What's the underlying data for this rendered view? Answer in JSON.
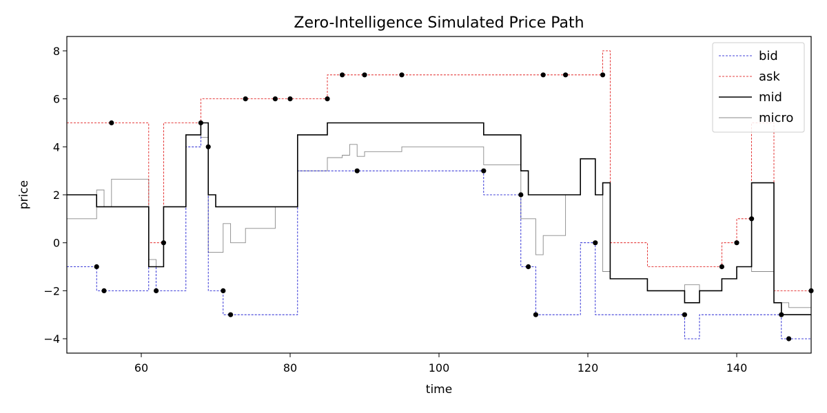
{
  "chart_data": {
    "type": "line",
    "title": "Zero-Intelligence Simulated Price Path",
    "xlabel": "time",
    "ylabel": "price",
    "xlim": [
      50,
      150
    ],
    "ylim": [
      -4.6,
      8.6
    ],
    "xticks": [
      60,
      80,
      100,
      120,
      140
    ],
    "yticks": [
      -4,
      -2,
      0,
      2,
      4,
      6,
      8
    ],
    "grid": false,
    "legend_position": "top-right",
    "step": "post",
    "series": [
      {
        "name": "bid",
        "color": "#0000cc",
        "style": "dashed",
        "x": [
          50,
          54,
          61,
          62,
          63,
          66,
          68,
          69,
          71,
          81,
          106,
          111,
          113,
          119,
          121,
          122,
          123,
          133,
          135,
          146,
          150
        ],
        "y": [
          -1,
          -2,
          -1,
          -2,
          -2,
          4,
          5,
          -2,
          -3,
          3,
          2,
          -1,
          -3,
          0,
          -3,
          -3,
          -3,
          -4,
          -3,
          -4,
          -4
        ]
      },
      {
        "name": "ask",
        "color": "#dd0000",
        "style": "dashed",
        "x": [
          50,
          61,
          63,
          64,
          68,
          72,
          85,
          122,
          123,
          128,
          138,
          140,
          142,
          145,
          150
        ],
        "y": [
          5,
          0,
          5,
          5,
          6,
          6,
          7,
          8,
          0,
          -1,
          0,
          1,
          5,
          -2,
          -2
        ]
      },
      {
        "name": "mid",
        "color": "#000000",
        "style": "solid",
        "x": [
          50,
          54,
          61,
          63,
          64,
          66,
          68,
          69,
          70,
          72,
          81,
          85,
          106,
          111,
          112,
          113,
          119,
          121,
          122,
          123,
          128,
          133,
          135,
          138,
          140,
          142,
          145,
          146,
          150
        ],
        "y": [
          2,
          1.5,
          -1,
          1.5,
          1.5,
          4.5,
          5,
          2,
          1.5,
          1.5,
          4.5,
          5,
          4.5,
          3,
          2,
          2,
          3.5,
          2,
          2.5,
          -1.5,
          -2,
          -2.5,
          -2,
          -1.5,
          -1,
          2.5,
          -2.5,
          -3,
          -3
        ]
      },
      {
        "name": "micro",
        "color": "#888888",
        "style": "solid",
        "x": [
          50,
          54,
          55,
          56,
          61,
          62,
          63,
          66,
          68,
          69,
          71,
          72,
          74,
          78,
          81,
          85,
          87,
          88,
          89,
          90,
          92,
          95,
          106,
          111,
          113,
          114,
          117,
          119,
          121,
          122,
          123,
          128,
          133,
          135,
          138,
          140,
          142,
          145,
          147,
          150
        ],
        "y": [
          1,
          2.2,
          1.5,
          2.65,
          -0.7,
          -1,
          1.5,
          4.5,
          4.4,
          -0.4,
          0.8,
          0,
          0.6,
          1.5,
          3,
          3.55,
          3.65,
          4.1,
          3.6,
          3.8,
          3.8,
          4,
          3.25,
          1,
          -0.5,
          0.3,
          2,
          3.5,
          2,
          -1.2,
          -1.5,
          -2,
          -1.75,
          -2,
          -1.5,
          -1,
          -1.2,
          -2.5,
          -2.7,
          -2.7
        ]
      },
      {
        "name": "orders",
        "color": "#000000",
        "style": "markers",
        "x": [
          54,
          55,
          56,
          62,
          63,
          68,
          69,
          71,
          72,
          74,
          78,
          80,
          85,
          87,
          89,
          90,
          95,
          106,
          111,
          112,
          113,
          114,
          117,
          121,
          122,
          133,
          138,
          140,
          142,
          146,
          147,
          150
        ],
        "y": [
          -1,
          -2,
          5,
          -2,
          0,
          5,
          4,
          -2,
          -3,
          6,
          6,
          6,
          6,
          7,
          3,
          7,
          7,
          3,
          2,
          -1,
          -3,
          7,
          7,
          0,
          7,
          -3,
          -1,
          0,
          1,
          -3,
          -4,
          -2
        ]
      }
    ]
  }
}
